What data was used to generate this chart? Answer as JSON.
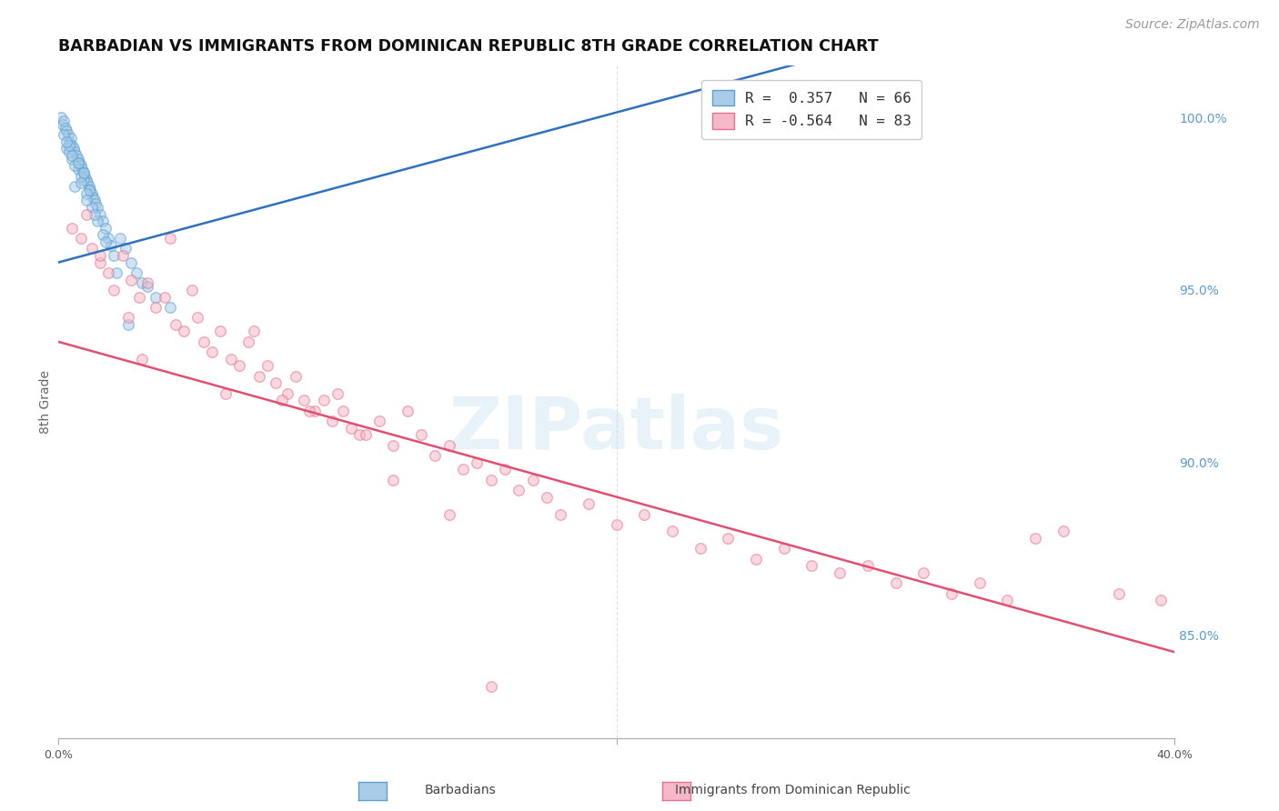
{
  "title": "BARBADIAN VS IMMIGRANTS FROM DOMINICAN REPUBLIC 8TH GRADE CORRELATION CHART",
  "source": "Source: ZipAtlas.com",
  "ylabel": "8th Grade",
  "xlim": [
    0.0,
    40.0
  ],
  "ylim": [
    82.0,
    101.5
  ],
  "right_yticks": [
    85.0,
    90.0,
    95.0,
    100.0
  ],
  "right_ytick_labels": [
    "85.0%",
    "90.0%",
    "95.0%",
    "100.0%"
  ],
  "legend_line1": "R =  0.357   N = 66",
  "legend_line2": "R = -0.564   N = 83",
  "blue_scatter_x": [
    0.1,
    0.15,
    0.2,
    0.25,
    0.3,
    0.35,
    0.4,
    0.45,
    0.5,
    0.55,
    0.6,
    0.65,
    0.7,
    0.75,
    0.8,
    0.85,
    0.9,
    0.95,
    1.0,
    1.05,
    1.1,
    1.15,
    1.2,
    1.25,
    1.3,
    1.35,
    1.4,
    1.5,
    1.6,
    1.7,
    1.8,
    1.9,
    2.0,
    2.2,
    2.4,
    2.6,
    2.8,
    3.0,
    3.5,
    4.0,
    0.3,
    0.5,
    0.7,
    0.9,
    1.1,
    0.2,
    0.4,
    0.6,
    0.8,
    1.0,
    1.2,
    1.4,
    1.6,
    0.5,
    0.7,
    0.9,
    1.3,
    1.7,
    2.1,
    0.6,
    0.4,
    0.8,
    1.0,
    2.5,
    3.2,
    0.3
  ],
  "blue_scatter_y": [
    100.0,
    99.8,
    99.9,
    99.7,
    99.6,
    99.5,
    99.3,
    99.4,
    99.2,
    99.1,
    99.0,
    98.9,
    98.8,
    98.7,
    98.6,
    98.5,
    98.4,
    98.3,
    98.2,
    98.1,
    98.0,
    97.9,
    97.8,
    97.7,
    97.6,
    97.5,
    97.4,
    97.2,
    97.0,
    96.8,
    96.5,
    96.3,
    96.0,
    96.5,
    96.2,
    95.8,
    95.5,
    95.2,
    94.8,
    94.5,
    99.1,
    98.8,
    98.5,
    98.2,
    97.9,
    99.5,
    99.0,
    98.6,
    98.3,
    97.8,
    97.4,
    97.0,
    96.6,
    98.9,
    98.7,
    98.4,
    97.2,
    96.4,
    95.5,
    98.0,
    99.2,
    98.1,
    97.6,
    94.0,
    95.1,
    99.3
  ],
  "pink_scatter_x": [
    0.5,
    0.8,
    1.2,
    1.5,
    1.8,
    2.0,
    2.3,
    2.6,
    2.9,
    3.2,
    3.5,
    3.8,
    4.2,
    4.5,
    4.8,
    5.2,
    5.5,
    5.8,
    6.2,
    6.5,
    6.8,
    7.2,
    7.5,
    7.8,
    8.2,
    8.5,
    8.8,
    9.2,
    9.5,
    9.8,
    10.2,
    10.5,
    10.8,
    11.5,
    12.0,
    12.5,
    13.0,
    13.5,
    14.0,
    14.5,
    15.0,
    15.5,
    16.0,
    16.5,
    17.0,
    17.5,
    18.0,
    19.0,
    20.0,
    21.0,
    22.0,
    23.0,
    24.0,
    25.0,
    26.0,
    27.0,
    28.0,
    29.0,
    30.0,
    31.0,
    32.0,
    33.0,
    34.0,
    35.0,
    36.0,
    38.0,
    39.5,
    1.0,
    1.5,
    2.5,
    3.0,
    4.0,
    5.0,
    6.0,
    7.0,
    8.0,
    9.0,
    10.0,
    11.0,
    12.0,
    14.0,
    15.5
  ],
  "pink_scatter_y": [
    96.8,
    96.5,
    96.2,
    95.8,
    95.5,
    95.0,
    96.0,
    95.3,
    94.8,
    95.2,
    94.5,
    94.8,
    94.0,
    93.8,
    95.0,
    93.5,
    93.2,
    93.8,
    93.0,
    92.8,
    93.5,
    92.5,
    92.8,
    92.3,
    92.0,
    92.5,
    91.8,
    91.5,
    91.8,
    91.2,
    91.5,
    91.0,
    90.8,
    91.2,
    90.5,
    91.5,
    90.8,
    90.2,
    90.5,
    89.8,
    90.0,
    89.5,
    89.8,
    89.2,
    89.5,
    89.0,
    88.5,
    88.8,
    88.2,
    88.5,
    88.0,
    87.5,
    87.8,
    87.2,
    87.5,
    87.0,
    86.8,
    87.0,
    86.5,
    86.8,
    86.2,
    86.5,
    86.0,
    87.8,
    88.0,
    86.2,
    86.0,
    97.2,
    96.0,
    94.2,
    93.0,
    96.5,
    94.2,
    92.0,
    93.8,
    91.8,
    91.5,
    92.0,
    90.8,
    89.5,
    88.5,
    83.5
  ],
  "blue_line_x": [
    0.0,
    40.0
  ],
  "blue_line_y": [
    95.8,
    104.5
  ],
  "pink_line_x": [
    0.0,
    40.0
  ],
  "pink_line_y": [
    93.5,
    84.5
  ],
  "blue_dot_color": "#a8cce8",
  "blue_dot_edge": "#5a9fd4",
  "pink_dot_color": "#f5b8c8",
  "pink_dot_edge": "#e87090",
  "blue_line_color": "#3070c0",
  "pink_line_color": "#e05070",
  "dot_size": 70,
  "dot_alpha": 0.55,
  "background_color": "#ffffff",
  "grid_color": "#cccccc",
  "right_axis_color": "#5b9bd5",
  "watermark_text": "ZIPatlas",
  "watermark_color": "#c5dff0",
  "watermark_alpha": 0.4,
  "title_fontsize": 12.5,
  "source_fontsize": 10
}
